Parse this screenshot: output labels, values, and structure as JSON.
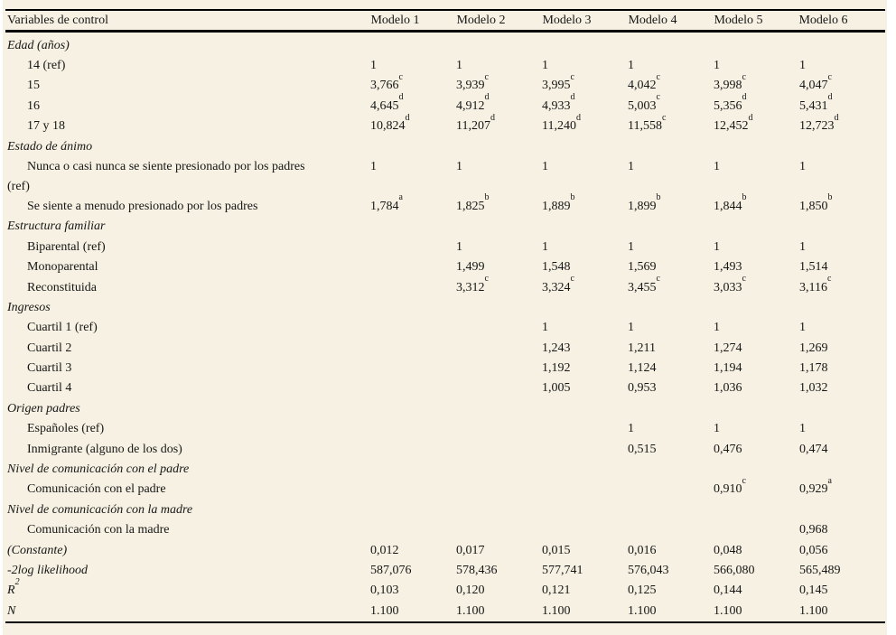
{
  "page": {
    "background": "#ffffff",
    "panel_background": "#f6f1e2",
    "text_color": "#161616",
    "rule_color": "#000000"
  },
  "table": {
    "header": [
      "Variables de control",
      "Modelo 1",
      "Modelo 2",
      "Modelo 3",
      "Modelo 4",
      "Modelo 5",
      "Modelo 6"
    ],
    "rows": [
      {
        "label": "Edad (años)",
        "style": "section",
        "values": [
          "",
          "",
          "",
          "",
          "",
          ""
        ]
      },
      {
        "label": "14 (ref)",
        "style": "indent",
        "values": [
          "1",
          "1",
          "1",
          "1",
          "1",
          "1"
        ]
      },
      {
        "label": "15",
        "style": "indent",
        "values": [
          "3,766^c",
          "3,939^c",
          "3,995^c",
          "4,042^c",
          "3,998^c",
          "4,047^c"
        ]
      },
      {
        "label": "16",
        "style": "indent",
        "values": [
          "4,645^d",
          "4,912^d",
          "4,933^d",
          "5,003^c",
          "5,356^d",
          "5,431^d"
        ]
      },
      {
        "label": "17 y 18",
        "style": "indent",
        "values": [
          "10,824^d",
          "11,207^d",
          "11,240^d",
          "11,558^c",
          "12,452^d",
          "12,723^d"
        ]
      },
      {
        "label": "Estado de ánimo",
        "style": "section",
        "values": [
          "",
          "",
          "",
          "",
          "",
          ""
        ]
      },
      {
        "label": "Nunca o casi nunca se siente presionado por los padres (ref)",
        "style": "indent",
        "values": [
          "1",
          "1",
          "1",
          "1",
          "1",
          "1"
        ]
      },
      {
        "label": "Se siente a menudo presionado por los padres",
        "style": "indent",
        "values": [
          "1,784^a",
          "1,825^b",
          "1,889^b",
          "1,899^b",
          "1,844^b",
          "1,850^b"
        ]
      },
      {
        "label": "Estructura familiar",
        "style": "section",
        "values": [
          "",
          "",
          "",
          "",
          "",
          ""
        ]
      },
      {
        "label": "Biparental (ref)",
        "style": "indent",
        "values": [
          "",
          "1",
          "1",
          "1",
          "1",
          "1"
        ]
      },
      {
        "label": "Monoparental",
        "style": "indent",
        "values": [
          "",
          "1,499",
          "1,548",
          "1,569",
          "1,493",
          "1,514"
        ]
      },
      {
        "label": "Reconstituida",
        "style": "indent",
        "values": [
          "",
          "3,312^c",
          "3,324^c",
          "3,455^c",
          "3,033^c",
          "3,116^c"
        ]
      },
      {
        "label": "Ingresos",
        "style": "section",
        "values": [
          "",
          "",
          "",
          "",
          "",
          ""
        ]
      },
      {
        "label": "Cuartil 1 (ref)",
        "style": "indent",
        "values": [
          "",
          "",
          "1",
          "1",
          "1",
          "1"
        ]
      },
      {
        "label": "Cuartil 2",
        "style": "indent",
        "values": [
          "",
          "",
          "1,243",
          "1,211",
          "1,274",
          "1,269"
        ]
      },
      {
        "label": "Cuartil 3",
        "style": "indent",
        "values": [
          "",
          "",
          "1,192",
          "1,124",
          "1,194",
          "1,178"
        ]
      },
      {
        "label": "Cuartil 4",
        "style": "indent",
        "values": [
          "",
          "",
          "1,005",
          "0,953",
          "1,036",
          "1,032"
        ]
      },
      {
        "label": "Origen padres",
        "style": "section",
        "values": [
          "",
          "",
          "",
          "",
          "",
          ""
        ]
      },
      {
        "label": "Españoles (ref)",
        "style": "indent",
        "values": [
          "",
          "",
          "",
          "1",
          "1",
          "1"
        ]
      },
      {
        "label": "Inmigrante (alguno de los dos)",
        "style": "indent",
        "values": [
          "",
          "",
          "",
          "0,515",
          "0,476",
          "0,474"
        ]
      },
      {
        "label": "Nivel de comunicación con el padre",
        "style": "section",
        "values": [
          "",
          "",
          "",
          "",
          "",
          ""
        ]
      },
      {
        "label": "Comunicación con el padre",
        "style": "indent",
        "values": [
          "",
          "",
          "",
          "",
          "0,910^c",
          "0,929^a"
        ]
      },
      {
        "label": "Nivel de comunicación con la madre",
        "style": "section",
        "values": [
          "",
          "",
          "",
          "",
          "",
          ""
        ]
      },
      {
        "label": "Comunicación con la madre",
        "style": "indent",
        "values": [
          "",
          "",
          "",
          "",
          "",
          "0,968"
        ]
      },
      {
        "label": "(Constante)",
        "style": "stat",
        "values": [
          "0,012",
          "0,017",
          "0,015",
          "0,016",
          "0,048",
          "0,056"
        ]
      },
      {
        "label": "-2log likelihood",
        "style": "stat",
        "values": [
          "587,076",
          "578,436",
          "577,741",
          "576,043",
          "566,080",
          "565,489"
        ]
      },
      {
        "label": "R^2",
        "style": "stat",
        "values": [
          "0,103",
          "0,120",
          "0,121",
          "0,125",
          "0,144",
          "0,145"
        ]
      },
      {
        "label": "N",
        "style": "stat",
        "values": [
          "1.100",
          "1.100",
          "1.100",
          "1.100",
          "1.100",
          "1.100"
        ]
      }
    ]
  }
}
